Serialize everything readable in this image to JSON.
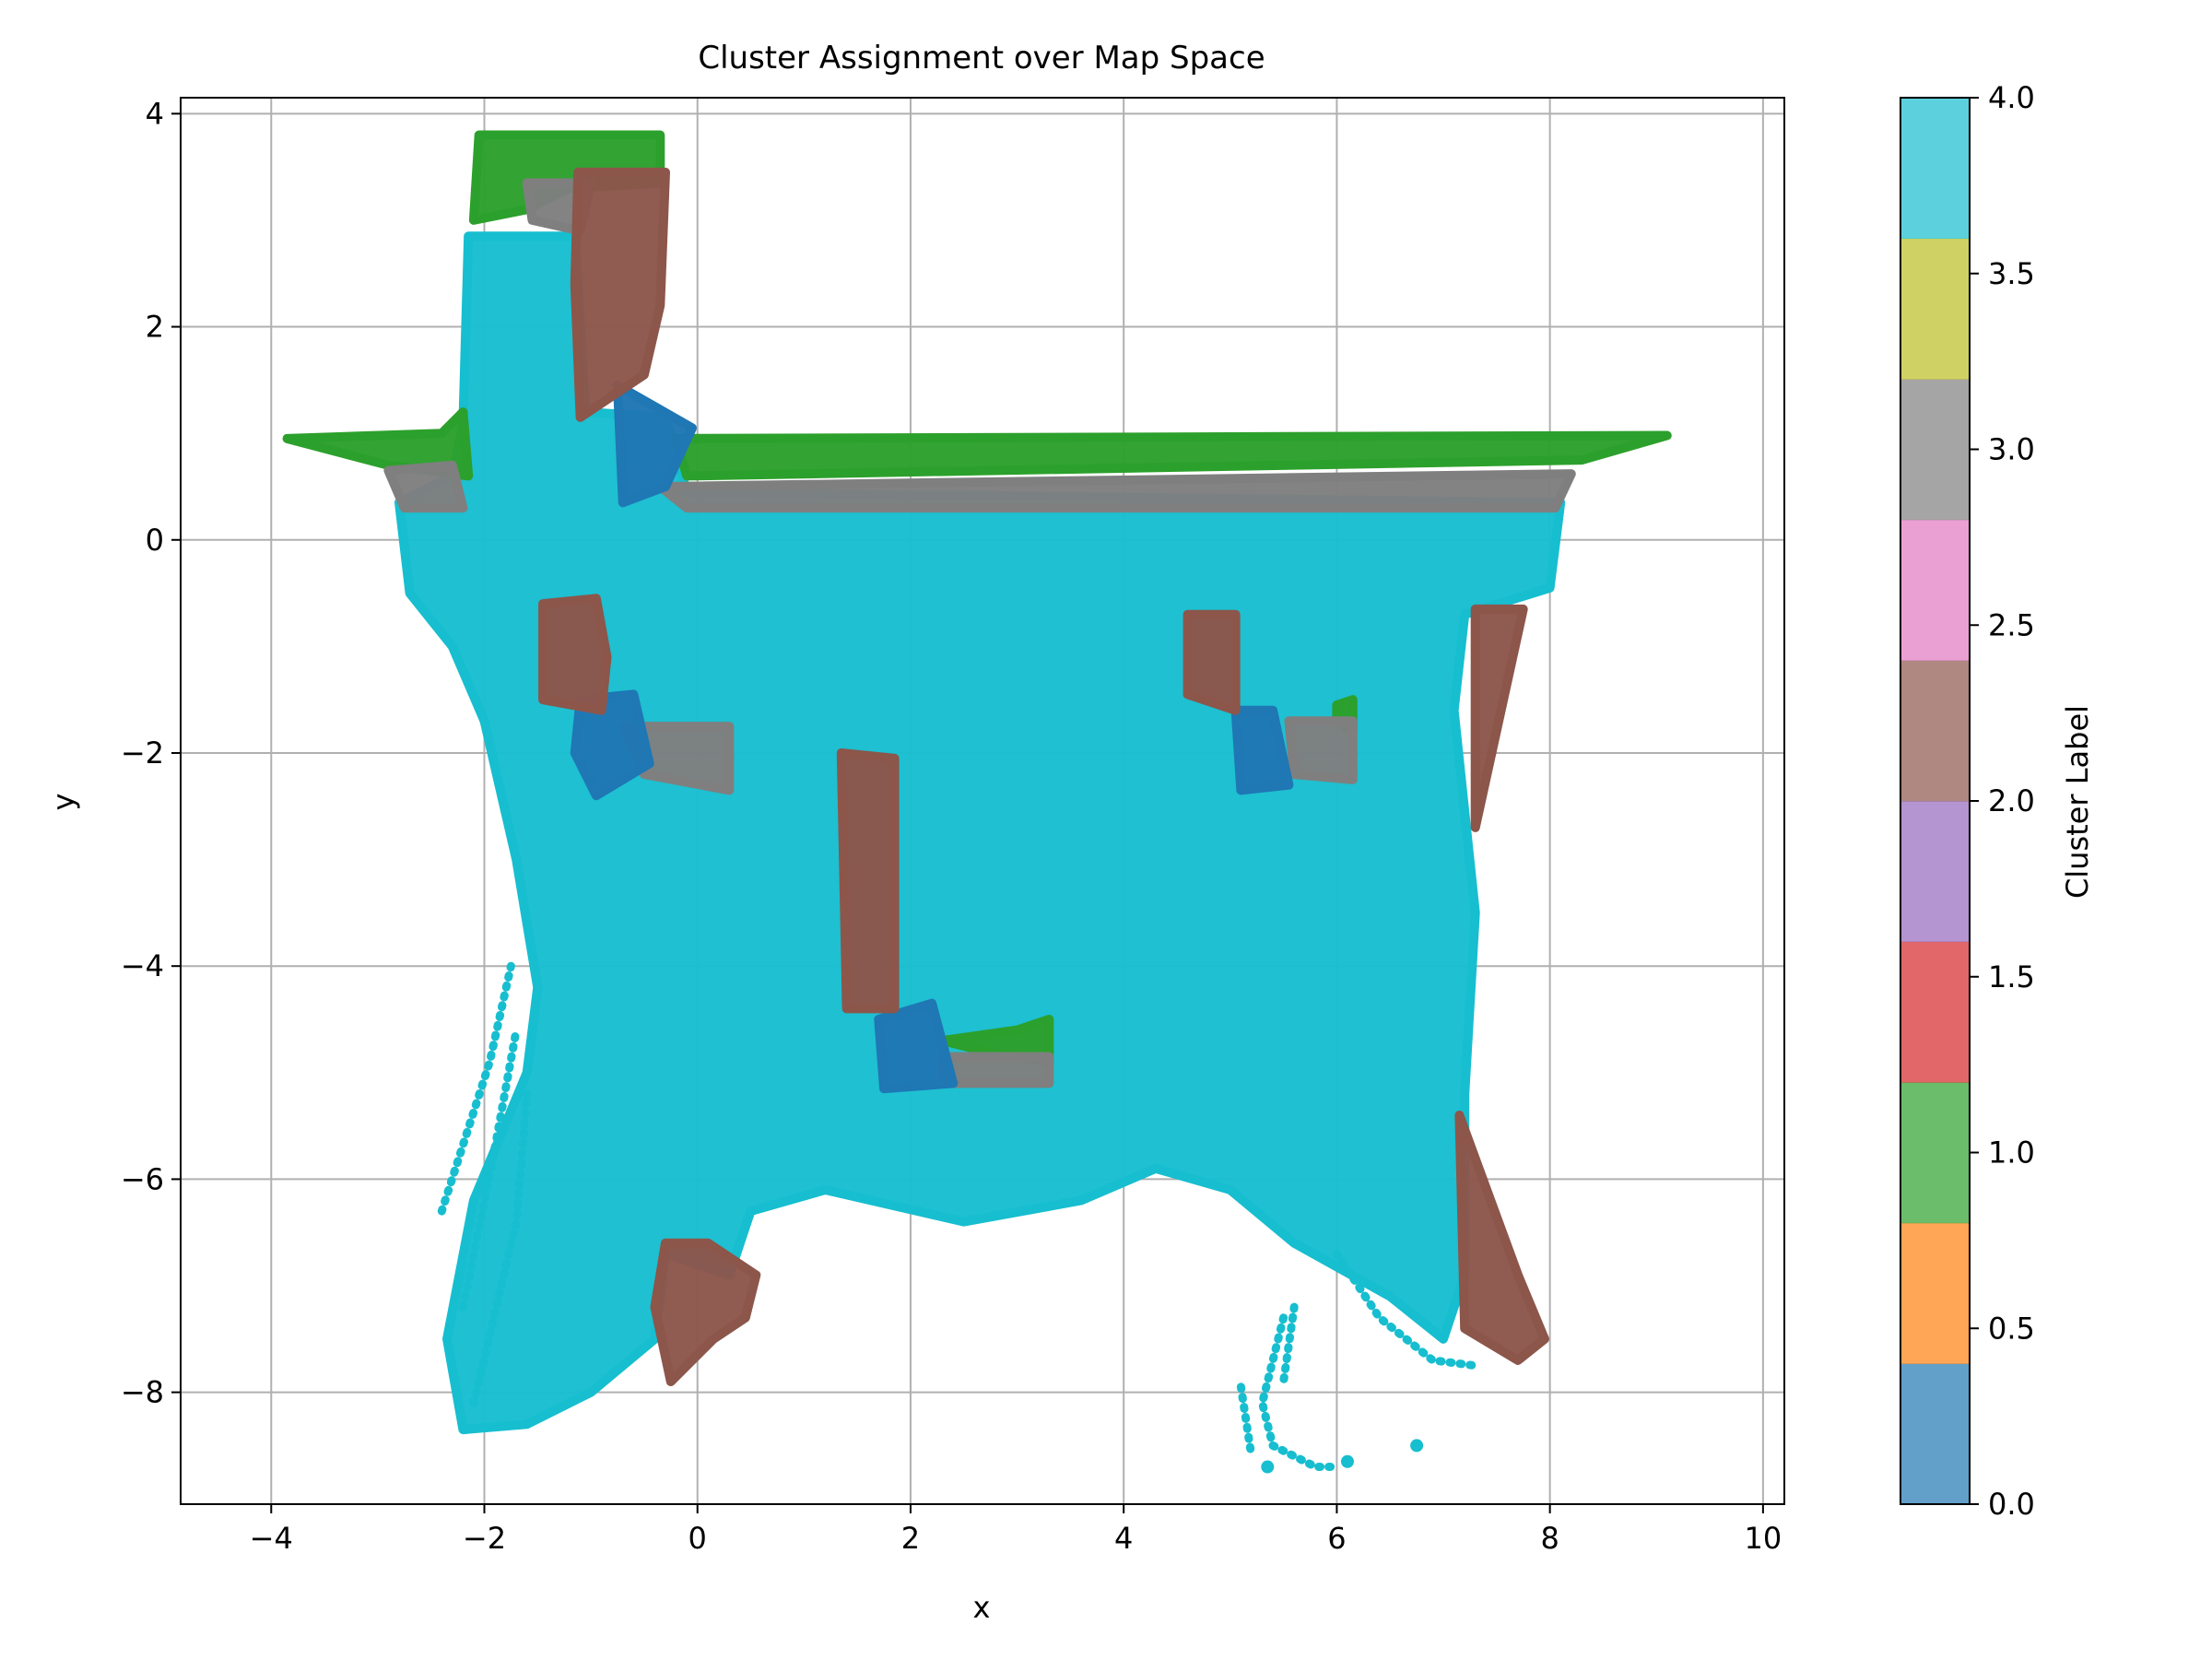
{
  "chart_data": {
    "type": "scatter",
    "title": "Cluster Assignment over Map Space",
    "xlabel": "x",
    "ylabel": "y",
    "xlim": [
      -4.85,
      10.2
    ],
    "ylim": [
      -9.05,
      4.15
    ],
    "xticks": [
      -4,
      -2,
      0,
      2,
      4,
      6,
      8,
      10
    ],
    "yticks": [
      4,
      2,
      0,
      -2,
      -4,
      -6,
      -8
    ],
    "xtick_labels": [
      "−4",
      "−2",
      "0",
      "2",
      "4",
      "6",
      "8",
      "10"
    ],
    "ytick_labels": [
      "4",
      "2",
      "0",
      "−2",
      "−4",
      "−6",
      "−8"
    ],
    "grid": true,
    "colorbar": {
      "label": "Cluster Label",
      "range": [
        0,
        4
      ],
      "ticks": [
        0.0,
        0.5,
        1.0,
        1.5,
        2.0,
        2.5,
        3.0,
        3.5,
        4.0
      ],
      "tick_labels": [
        "0.0",
        "0.5",
        "1.0",
        "1.5",
        "2.0",
        "2.5",
        "3.0",
        "3.5",
        "4.0"
      ],
      "colors": [
        "#1f77b4",
        "#ff7f0e",
        "#2ca02c",
        "#d62728",
        "#9467bd",
        "#8c564b",
        "#e377c2",
        "#7f7f7f",
        "#bcbd22",
        "#17becf"
      ]
    },
    "cluster_colors": {
      "0": "#1f77b4",
      "1": "#2ca02c",
      "2": "#8c564b",
      "3": "#7f7f7f",
      "4": "#17becf"
    },
    "clusters": [
      {
        "label": 4,
        "regions": [
          {
            "kind": "polygon",
            "points": [
              [
                -2.15,
                2.85
              ],
              [
                -1.15,
                2.85
              ],
              [
                -1.05,
                1.2
              ],
              [
                -0.3,
                1.15
              ],
              [
                -0.1,
                0.45
              ],
              [
                8.1,
                0.35
              ],
              [
                8.0,
                -0.45
              ],
              [
                7.2,
                -0.7
              ],
              [
                7.1,
                -1.6
              ],
              [
                7.3,
                -3.5
              ],
              [
                7.2,
                -5.2
              ],
              [
                7.2,
                -6.9
              ],
              [
                7.0,
                -7.5
              ],
              [
                6.5,
                -7.1
              ],
              [
                5.6,
                -6.6
              ],
              [
                5.0,
                -6.1
              ],
              [
                4.3,
                -5.9
              ],
              [
                3.6,
                -6.2
              ],
              [
                2.5,
                -6.4
              ],
              [
                1.2,
                -6.1
              ],
              [
                0.5,
                -6.3
              ],
              [
                0.3,
                -6.9
              ],
              [
                -0.3,
                -6.7
              ],
              [
                -0.4,
                -7.5
              ],
              [
                -1.0,
                -8.0
              ],
              [
                -1.6,
                -8.3
              ],
              [
                -2.2,
                -8.35
              ],
              [
                -2.35,
                -7.5
              ],
              [
                -2.1,
                -6.2
              ],
              [
                -1.6,
                -5.0
              ],
              [
                -1.5,
                -4.2
              ],
              [
                -1.7,
                -3.0
              ],
              [
                -2.0,
                -1.7
              ],
              [
                -2.3,
                -1.0
              ],
              [
                -2.7,
                -0.5
              ],
              [
                -2.8,
                0.35
              ],
              [
                -2.3,
                0.6
              ],
              [
                -2.2,
                1.1
              ]
            ]
          },
          {
            "kind": "line",
            "points": [
              [
                -2.4,
                -6.3
              ],
              [
                -1.95,
                -4.9
              ],
              [
                -1.75,
                -4.0
              ]
            ]
          },
          {
            "kind": "line",
            "points": [
              [
                -2.2,
                -7.2
              ],
              [
                -1.9,
                -5.7
              ],
              [
                -1.7,
                -4.6
              ]
            ]
          },
          {
            "kind": "line",
            "points": [
              [
                -2.1,
                -8.1
              ],
              [
                -1.7,
                -6.4
              ],
              [
                -1.6,
                -5.2
              ]
            ]
          },
          {
            "kind": "line",
            "points": [
              [
                6.0,
                -6.7
              ],
              [
                6.4,
                -7.3
              ],
              [
                6.9,
                -7.7
              ],
              [
                7.3,
                -7.75
              ]
            ]
          },
          {
            "kind": "line",
            "points": [
              [
                5.5,
                -7.3
              ],
              [
                5.3,
                -8.1
              ],
              [
                5.4,
                -8.5
              ],
              [
                5.8,
                -8.7
              ],
              [
                6.0,
                -8.7
              ]
            ]
          },
          {
            "kind": "line",
            "points": [
              [
                5.1,
                -7.95
              ],
              [
                5.2,
                -8.6
              ]
            ]
          },
          {
            "kind": "line",
            "points": [
              [
                5.6,
                -7.2
              ],
              [
                5.5,
                -7.9
              ]
            ]
          },
          {
            "kind": "point",
            "points": [
              [
                6.75,
                -8.5
              ],
              [
                6.1,
                -8.65
              ],
              [
                5.35,
                -8.7
              ]
            ]
          }
        ]
      },
      {
        "label": 1,
        "regions": [
          {
            "kind": "polygon",
            "points": [
              [
                -2.1,
                3.0
              ],
              [
                -2.05,
                3.8
              ],
              [
                -0.35,
                3.8
              ],
              [
                -0.35,
                3.35
              ],
              [
                -1.2,
                3.3
              ],
              [
                -1.6,
                3.1
              ],
              [
                -2.1,
                3.0
              ]
            ]
          },
          {
            "kind": "polygon",
            "points": [
              [
                -3.85,
                0.95
              ],
              [
                -2.4,
                1.0
              ],
              [
                -2.2,
                1.2
              ],
              [
                -2.15,
                0.6
              ],
              [
                -2.9,
                0.7
              ]
            ]
          },
          {
            "kind": "polygon",
            "points": [
              [
                -0.2,
                0.95
              ],
              [
                9.1,
                0.98
              ],
              [
                8.3,
                0.75
              ],
              [
                -0.1,
                0.6
              ]
            ]
          },
          {
            "kind": "polygon",
            "points": [
              [
                2.3,
                -4.7
              ],
              [
                3.0,
                -4.6
              ],
              [
                3.3,
                -4.5
              ],
              [
                3.3,
                -4.9
              ],
              [
                2.7,
                -4.8
              ]
            ]
          },
          {
            "kind": "polygon",
            "points": [
              [
                6.0,
                -1.55
              ],
              [
                6.15,
                -1.5
              ],
              [
                6.15,
                -1.8
              ],
              [
                6.0,
                -1.7
              ]
            ]
          }
        ]
      },
      {
        "label": 3,
        "regions": [
          {
            "kind": "polygon",
            "points": [
              [
                -1.6,
                3.35
              ],
              [
                -1.0,
                3.35
              ],
              [
                -1.1,
                2.9
              ],
              [
                -1.55,
                3.0
              ]
            ]
          },
          {
            "kind": "polygon",
            "points": [
              [
                -2.9,
                0.65
              ],
              [
                -2.3,
                0.7
              ],
              [
                -2.2,
                0.3
              ],
              [
                -2.75,
                0.3
              ]
            ]
          },
          {
            "kind": "polygon",
            "points": [
              [
                -0.35,
                0.5
              ],
              [
                8.2,
                0.62
              ],
              [
                8.05,
                0.3
              ],
              [
                -0.1,
                0.3
              ]
            ]
          },
          {
            "kind": "polygon",
            "points": [
              [
                -0.7,
                -1.75
              ],
              [
                0.3,
                -1.75
              ],
              [
                0.3,
                -2.35
              ],
              [
                -0.5,
                -2.2
              ]
            ]
          },
          {
            "kind": "polygon",
            "points": [
              [
                2.3,
                -4.85
              ],
              [
                3.3,
                -4.85
              ],
              [
                3.3,
                -5.1
              ],
              [
                2.3,
                -5.1
              ]
            ]
          },
          {
            "kind": "polygon",
            "points": [
              [
                5.55,
                -1.7
              ],
              [
                6.15,
                -1.7
              ],
              [
                6.15,
                -2.25
              ],
              [
                5.6,
                -2.2
              ]
            ]
          }
        ]
      },
      {
        "label": 0,
        "regions": [
          {
            "kind": "polygon",
            "points": [
              [
                -0.75,
                1.45
              ],
              [
                -0.05,
                1.05
              ],
              [
                -0.3,
                0.5
              ],
              [
                -0.7,
                0.35
              ]
            ]
          },
          {
            "kind": "polygon",
            "points": [
              [
                -1.1,
                -1.5
              ],
              [
                -0.6,
                -1.45
              ],
              [
                -0.45,
                -2.1
              ],
              [
                -0.95,
                -2.4
              ],
              [
                -1.15,
                -2.0
              ]
            ]
          },
          {
            "kind": "polygon",
            "points": [
              [
                1.7,
                -4.5
              ],
              [
                2.2,
                -4.35
              ],
              [
                2.4,
                -5.1
              ],
              [
                1.75,
                -5.15
              ]
            ]
          },
          {
            "kind": "polygon",
            "points": [
              [
                5.05,
                -1.6
              ],
              [
                5.4,
                -1.6
              ],
              [
                5.55,
                -2.3
              ],
              [
                5.1,
                -2.35
              ]
            ]
          }
        ]
      },
      {
        "label": 2,
        "regions": [
          {
            "kind": "polygon",
            "points": [
              [
                -1.12,
                3.45
              ],
              [
                -0.3,
                3.45
              ],
              [
                -0.35,
                2.2
              ],
              [
                -0.5,
                1.55
              ],
              [
                -1.1,
                1.15
              ],
              [
                -1.15,
                2.4
              ]
            ]
          },
          {
            "kind": "polygon",
            "points": [
              [
                -1.45,
                -0.6
              ],
              [
                -0.95,
                -0.55
              ],
              [
                -0.85,
                -1.1
              ],
              [
                -0.9,
                -1.6
              ],
              [
                -1.45,
                -1.5
              ]
            ]
          },
          {
            "kind": "polygon",
            "points": [
              [
                1.35,
                -2.0
              ],
              [
                1.85,
                -2.05
              ],
              [
                1.85,
                -4.4
              ],
              [
                1.4,
                -4.4
              ]
            ]
          },
          {
            "kind": "polygon",
            "points": [
              [
                4.6,
                -0.7
              ],
              [
                5.05,
                -0.7
              ],
              [
                5.05,
                -1.6
              ],
              [
                4.6,
                -1.45
              ]
            ]
          },
          {
            "kind": "polygon",
            "points": [
              [
                7.3,
                -0.65
              ],
              [
                7.75,
                -0.65
              ],
              [
                7.3,
                -2.7
              ]
            ]
          },
          {
            "kind": "polygon",
            "points": [
              [
                7.15,
                -5.4
              ],
              [
                7.7,
                -6.9
              ],
              [
                7.95,
                -7.5
              ],
              [
                7.7,
                -7.7
              ],
              [
                7.2,
                -7.4
              ]
            ]
          },
          {
            "kind": "polygon",
            "points": [
              [
                -0.3,
                -6.6
              ],
              [
                0.1,
                -6.6
              ],
              [
                0.55,
                -6.9
              ],
              [
                0.45,
                -7.3
              ],
              [
                0.15,
                -7.5
              ],
              [
                -0.25,
                -7.9
              ],
              [
                -0.4,
                -7.2
              ]
            ]
          }
        ]
      }
    ]
  }
}
